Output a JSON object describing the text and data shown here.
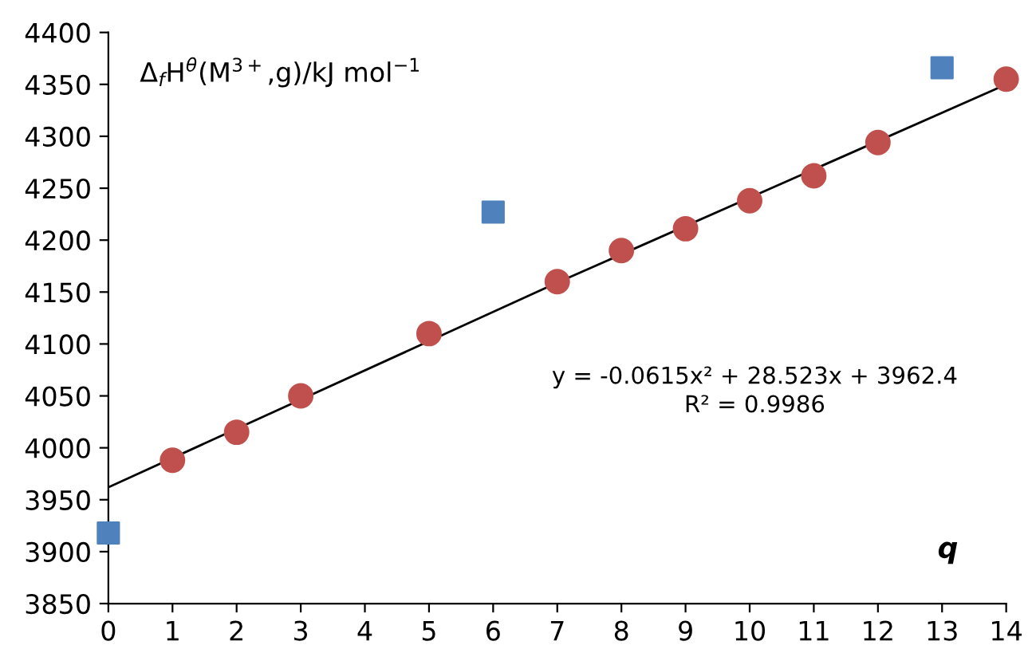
{
  "chart_data": {
    "type": "scatter",
    "xlabel": "q",
    "ylabel": "Δ$_{f}$H$^{θ}$(M$^{3+}$,g)/kJ mol$^{−1}$",
    "series": [
      {
        "marker": "circle",
        "color": "#c0504d",
        "x": [
          1,
          2,
          3,
          5,
          7,
          8,
          9,
          10,
          11,
          12,
          14
        ],
        "values": [
          3988,
          4015,
          4050,
          4110,
          4160,
          4190,
          4211,
          4238,
          4262,
          4294,
          4355
        ]
      },
      {
        "marker": "square",
        "color": "#4f81bd",
        "x": [
          0,
          6,
          13
        ],
        "values": [
          3918,
          4227,
          4366
        ]
      },
      {
        "type": "line",
        "marker": "none",
        "line_style": "solid",
        "color": "#000000",
        "x": [
          0,
          7,
          14
        ],
        "values": [
          3962,
          4159,
          4350
        ]
      }
    ],
    "annotations": [
      "y = -0.0615x² + 28.523x + 3962.4",
      "R² = 0.9986"
    ],
    "xlim": [
      0,
      14
    ],
    "ylim": [
      3850,
      4400
    ],
    "xticks": [
      0,
      1,
      2,
      3,
      4,
      5,
      6,
      7,
      8,
      9,
      10,
      11,
      12,
      13,
      14
    ],
    "yticks": [
      3850,
      3900,
      3950,
      4000,
      4050,
      4100,
      4150,
      4200,
      4250,
      4300,
      4350,
      4400
    ],
    "grid": false,
    "legend": false
  }
}
